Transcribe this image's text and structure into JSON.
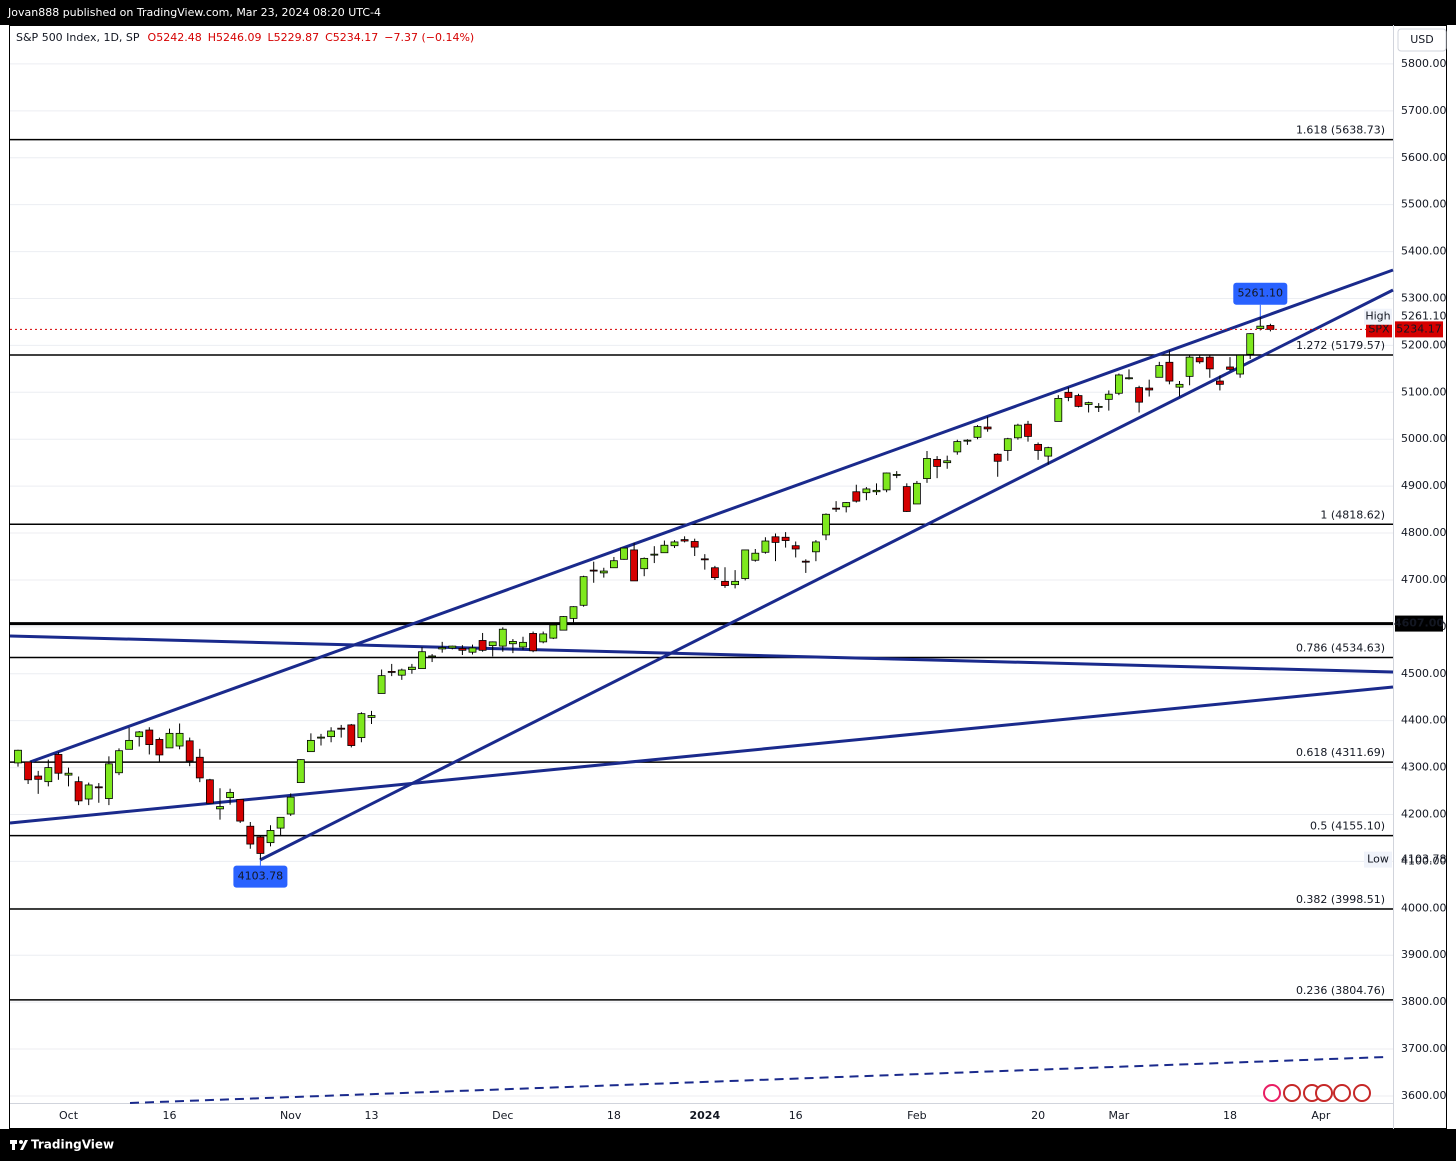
{
  "header": {
    "publisher": "Jovan888 published on TradingView.com, Mar 23, 2024 08:20 UTC-4",
    "symbol": "S&P 500 Index, 1D, SP",
    "ohlc": [
      "O5242.48",
      "H5246.09",
      "L5229.87",
      "C5234.17",
      "−7.37 (−0.14%)"
    ],
    "currency": "USD"
  },
  "footer": {
    "brand": "TradingView"
  },
  "chart_data": {
    "type": "candlestick",
    "categories": [
      null,
      null,
      null,
      null,
      null,
      "Oct",
      null,
      null,
      null,
      null,
      null,
      null,
      null,
      null,
      null,
      "16",
      null,
      null,
      null,
      null,
      null,
      null,
      null,
      null,
      null,
      null,
      null,
      "Nov",
      null,
      null,
      null,
      null,
      null,
      null,
      null,
      "13",
      null,
      null,
      null,
      null,
      null,
      null,
      null,
      null,
      null,
      null,
      null,
      null,
      "Dec",
      null,
      null,
      null,
      null,
      null,
      null,
      null,
      null,
      null,
      null,
      "18",
      null,
      null,
      null,
      null,
      null,
      null,
      null,
      null,
      "2024",
      null,
      null,
      null,
      null,
      null,
      null,
      null,
      null,
      "16",
      null,
      null,
      null,
      null,
      null,
      null,
      null,
      null,
      null,
      null,
      null,
      "Feb",
      null,
      null,
      null,
      null,
      null,
      null,
      null,
      null,
      null,
      null,
      null,
      "20",
      null,
      null,
      null,
      null,
      null,
      null,
      null,
      "Mar",
      null,
      null,
      null,
      null,
      null,
      null,
      null,
      null,
      null,
      null,
      "18",
      null,
      null,
      null,
      null,
      null,
      null,
      null,
      null,
      "Apr",
      null,
      null,
      null,
      null,
      null,
      null
    ],
    "open": [
      4310,
      4312,
      4282,
      4270,
      4328,
      4284,
      4270,
      4233,
      4259,
      4234,
      4289,
      4339,
      4366,
      4380,
      4360,
      4342,
      4346,
      4357,
      4322,
      4274,
      4212,
      4236,
      4232,
      4175,
      4152,
      4140,
      4171,
      4201,
      4268,
      4334,
      4365,
      4366,
      4384,
      4391,
      4364,
      4407,
      4458,
      4505,
      4497,
      4509,
      4511,
      4538,
      4553,
      4555,
      4554,
      4546,
      4571,
      4560,
      4559,
      4564,
      4557,
      4586,
      4568,
      4576,
      4593,
      4618,
      4646,
      4721,
      4715,
      4726,
      4744,
      4764,
      4724,
      4753,
      4758,
      4773,
      4786,
      4782,
      4745,
      4726,
      4697,
      4690,
      4703,
      4742,
      4759,
      4792,
      4791,
      4773,
      4740,
      4760,
      4796,
      4853,
      4856,
      4888,
      4886,
      4888,
      4892,
      4925,
      4899,
      4862,
      4916,
      4957,
      4950,
      4973,
      4996,
      5004,
      5026,
      4968,
      4976,
      5003,
      5032,
      4989,
      4964,
      5038,
      5100,
      5093,
      5074,
      5068,
      5085,
      5098,
      5131,
      5110,
      5109,
      5132,
      5164,
      5111,
      5134,
      5174,
      5175,
      5124,
      5154,
      5139,
      5181,
      5236,
      5242.48,
      null,
      null,
      null,
      null,
      null,
      null,
      null,
      null,
      null,
      null,
      null
    ],
    "high": [
      4338,
      4313,
      4293,
      4317,
      4333,
      4300,
      4281,
      4268,
      4267,
      4324,
      4341,
      4385,
      4378,
      4386,
      4364,
      4383,
      4394,
      4364,
      4340,
      4276,
      4256,
      4255,
      4232,
      4184,
      4156,
      4177,
      4194,
      4245,
      4318,
      4373,
      4372,
      4386,
      4391,
      4393,
      4418,
      4421,
      4509,
      4521,
      4511,
      4521,
      4557,
      4542,
      4568,
      4560,
      4561,
      4562,
      4587,
      4569,
      4599,
      4574,
      4579,
      4590,
      4590,
      4609,
      4623,
      4644,
      4709,
      4739,
      4726,
      4749,
      4768,
      4779,
      4748,
      4772,
      4784,
      4785,
      4793,
      4788,
      4755,
      4730,
      4727,
      4721,
      4764,
      4766,
      4791,
      4799,
      4802,
      4782,
      4744,
      4785,
      4842,
      4868,
      4866,
      4903,
      4898,
      4906,
      4929,
      4932,
      4906,
      4911,
      4975,
      4964,
      4965,
      4999,
      5000,
      5030,
      5048,
      4970,
      5003,
      5033,
      5039,
      4993,
      4984,
      5094,
      5111,
      5097,
      5080,
      5077,
      5104,
      5140,
      5149,
      5114,
      5127,
      5165,
      5189,
      5124,
      5180,
      5180,
      5180,
      5136,
      5175,
      5180,
      5226,
      5261.1,
      5246.09,
      null,
      null,
      null,
      null,
      null,
      null,
      null,
      null,
      null,
      null,
      null
    ],
    "low": [
      4302,
      4265,
      4244,
      4260,
      4274,
      4260,
      4220,
      4220,
      4225,
      4220,
      4284,
      4339,
      4345,
      4328,
      4312,
      4342,
      4339,
      4303,
      4269,
      4223,
      4189,
      4221,
      4182,
      4127,
      4103.78,
      4132,
      4154,
      4197,
      4268,
      4334,
      4347,
      4354,
      4364,
      4343,
      4354,
      4393,
      4458,
      4495,
      4487,
      4500,
      4511,
      4525,
      4545,
      4552,
      4540,
      4541,
      4547,
      4537,
      4547,
      4544,
      4551,
      4546,
      4565,
      4574,
      4593,
      4609,
      4643,
      4694,
      4705,
      4726,
      4743,
      4698,
      4708,
      4736,
      4758,
      4768,
      4780,
      4751,
      4722,
      4700,
      4683,
      4682,
      4699,
      4739,
      4756,
      4740,
      4769,
      4748,
      4715,
      4740,
      4785,
      4845,
      4844,
      4865,
      4870,
      4881,
      4887,
      4917,
      4845,
      4862,
      4907,
      4917,
      4937,
      4967,
      4988,
      5000,
      5016,
      4920,
      4954,
      4999,
      4995,
      4956,
      4946,
      5038,
      5081,
      5068,
      5057,
      5058,
      5061,
      5094,
      5127,
      5057,
      5091,
      5132,
      5117,
      5091,
      5115,
      5161,
      5131,
      5104,
      5146,
      5131,
      5171,
      5232,
      5229.87,
      null,
      null,
      null,
      null,
      null,
      null,
      null,
      null,
      null,
      null,
      null
    ],
    "close": [
      4337,
      4274,
      4275,
      4300,
      4288,
      4288,
      4229,
      4263,
      4258,
      4308,
      4336,
      4358,
      4376,
      4349,
      4327,
      4373,
      4373,
      4314,
      4278,
      4224,
      4217,
      4247,
      4186,
      4137,
      4117,
      4166,
      4194,
      4237,
      4317,
      4358,
      4365,
      4378,
      4383,
      4347,
      4415,
      4411,
      4496,
      4503,
      4508,
      4514,
      4547,
      4538,
      4556,
      4559,
      4550,
      4555,
      4550,
      4568,
      4595,
      4569,
      4567,
      4549,
      4585,
      4604,
      4622,
      4643,
      4707,
      4719,
      4719,
      4741,
      4768,
      4698,
      4746,
      4755,
      4774,
      4781,
      4783,
      4770,
      4743,
      4705,
      4688,
      4697,
      4764,
      4757,
      4783,
      4780,
      4784,
      4766,
      4739,
      4781,
      4840,
      4851,
      4865,
      4868,
      4894,
      4891,
      4928,
      4925,
      4846,
      4906,
      4959,
      4942,
      4954,
      4995,
      4998,
      5027,
      5022,
      4953,
      5001,
      5030,
      5006,
      4976,
      4982,
      5087,
      5089,
      5070,
      5078,
      5070,
      5096,
      5137,
      5131,
      5079,
      5105,
      5157,
      5124,
      5117,
      5175,
      5165,
      5150,
      5117,
      5149,
      5179,
      5225,
      5241,
      5234.17,
      null,
      null,
      null,
      null,
      null,
      null,
      null,
      null,
      null,
      null,
      null
    ],
    "up_color": "#7ee81e",
    "down_color": "#d50000",
    "ylim": [
      3585,
      5883
    ],
    "yticks": [
      {
        "value": 3600,
        "label": "3600.00"
      },
      {
        "value": 3700,
        "label": "3700.00"
      },
      {
        "value": 3800,
        "label": "3800.00"
      },
      {
        "value": 3900,
        "label": "3900.00"
      },
      {
        "value": 4000,
        "label": "4000.00"
      },
      {
        "value": 4100,
        "label": "4100.00"
      },
      {
        "value": 4200,
        "label": "4200.00"
      },
      {
        "value": 4300,
        "label": "4300.00"
      },
      {
        "value": 4400,
        "label": "4400.00"
      },
      {
        "value": 4500,
        "label": "4500.00"
      },
      {
        "value": 4600,
        "label": "4600.00"
      },
      {
        "value": 4700,
        "label": "4700.00"
      },
      {
        "value": 4800,
        "label": "4800.00"
      },
      {
        "value": 4900,
        "label": "4900.00"
      },
      {
        "value": 5000,
        "label": "5000.00"
      },
      {
        "value": 5100,
        "label": "5100.00"
      },
      {
        "value": 5200,
        "label": "5200.00"
      },
      {
        "value": 5300,
        "label": "5300.00"
      },
      {
        "value": 5400,
        "label": "5400.00"
      },
      {
        "value": 5500,
        "label": "5500.00"
      },
      {
        "value": 5600,
        "label": "5600.00"
      },
      {
        "value": 5700,
        "label": "5700.00"
      },
      {
        "value": 5800,
        "label": "5800.00"
      }
    ],
    "grid": true,
    "levels": [
      {
        "value": 5638.73,
        "label": "1.618 (5638.73)"
      },
      {
        "value": 5179.57,
        "label": "1.272 (5179.57)"
      },
      {
        "value": 4818.62,
        "label": "1 (4818.62)"
      },
      {
        "value": 4534.63,
        "label": "0.786 (4534.63)"
      },
      {
        "value": 4311.69,
        "label": "0.618 (4311.69)"
      },
      {
        "value": 4155.1,
        "label": "0.5 (4155.10)"
      },
      {
        "value": 3998.51,
        "label": "0.382 (3998.51)"
      },
      {
        "value": 3804.76,
        "label": "0.236 (3804.76)"
      }
    ],
    "price_lines": [
      {
        "value": 4607,
        "label": "4607.00"
      }
    ],
    "markers": [
      {
        "name": "High",
        "value": 5261.1,
        "label": "5261.10"
      },
      {
        "name": "Low",
        "value": 4103.78,
        "label": "4103.78"
      }
    ],
    "callouts": [
      {
        "value": 5261.1,
        "label": "5261.10"
      },
      {
        "value": 4103.78,
        "label": "4103.78"
      }
    ],
    "last": {
      "name": "SPX",
      "value": 5234.17,
      "label": "5234.17"
    }
  }
}
